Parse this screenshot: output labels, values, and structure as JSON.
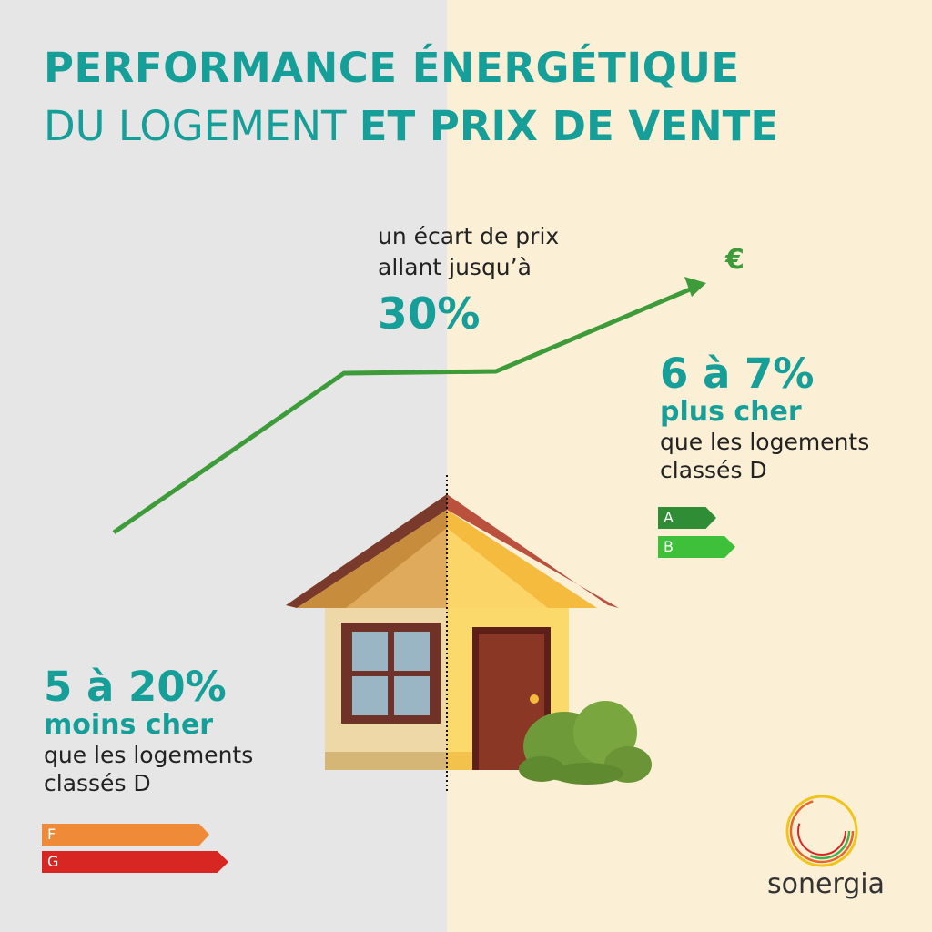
{
  "title": {
    "line1": "PERFORMANCE ÉNERGÉTIQUE",
    "line2_light": "DU LOGEMENT ",
    "line2_bold": "ET PRIX DE VENTE"
  },
  "price_gap": {
    "line1": "un écart de prix",
    "line2": "allant jusqu’à",
    "value": "30%"
  },
  "currency_symbol": "€",
  "efficient": {
    "percent": "6 à 7%",
    "label": "plus cher",
    "desc_line1": "que les logements",
    "desc_line2": "classés D",
    "classes": [
      "A",
      "B"
    ]
  },
  "inefficient": {
    "percent": "5 à 20%",
    "label": "moins cher",
    "desc_line1": "que les logements",
    "desc_line2": "classés D",
    "classes": [
      "F",
      "G"
    ]
  },
  "brand": "sonergia",
  "colors": {
    "teal": "#159f98",
    "trend_green": "#3d9b3a",
    "left_bg": "#e6e6e6",
    "right_bg": "#fbefd6",
    "class_a": "#2f8e35",
    "class_b": "#3fc03a",
    "class_f": "#ef8a38",
    "class_g": "#d82623"
  }
}
